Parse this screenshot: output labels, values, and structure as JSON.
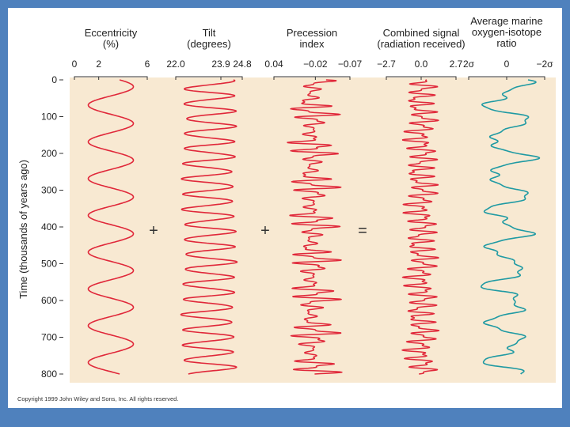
{
  "chart_data": {
    "type": "line",
    "ylabel": "Time (thousands of years ago)",
    "y_ticks": [
      "0",
      "100",
      "200",
      "300",
      "400",
      "500",
      "600",
      "700",
      "800"
    ],
    "ylim": [
      0,
      800
    ],
    "panels": [
      {
        "id": "eccentricity",
        "title_lines": [
          "Eccentricity",
          "(%)"
        ],
        "ticks": [
          "0",
          "2",
          "6"
        ],
        "tick_values": [
          0,
          2,
          6
        ],
        "xlim": [
          0,
          6
        ],
        "color": "#e0283a",
        "period_kyr": 100,
        "amplitude": 0.62,
        "min_value": 0,
        "max_value": 6
      },
      {
        "id": "tilt",
        "title_lines": [
          "Tilt",
          "(degrees)"
        ],
        "ticks": [
          "22.0",
          "23.9",
          "24.8"
        ],
        "tick_values": [
          22.0,
          23.9,
          24.8
        ],
        "xlim": [
          22.0,
          24.8
        ],
        "color": "#e0283a",
        "period_kyr": 41,
        "amplitude": 0.85,
        "min_value": 22.0,
        "max_value": 24.8
      },
      {
        "id": "precession",
        "title_lines": [
          "Precession",
          "index"
        ],
        "ticks": [
          "0.04",
          "−0.02",
          "−0.07"
        ],
        "tick_values": [
          0.04,
          -0.02,
          -0.07
        ],
        "xlim": [
          0.04,
          -0.07
        ],
        "color": "#e0283a",
        "period_kyr": 22,
        "amplitude": 0.9,
        "min_value": -0.07,
        "max_value": 0.04
      },
      {
        "id": "combined",
        "title_lines": [
          "Combined signal",
          "(radiation received)"
        ],
        "ticks": [
          "−2.7",
          "0.0",
          "2.7"
        ],
        "tick_values": [
          -2.7,
          0.0,
          2.7
        ],
        "xlim": [
          -2.7,
          2.7
        ],
        "color": "#e0283a",
        "period_kyr": 22,
        "amplitude": 0.55,
        "min_value": -2.7,
        "max_value": 2.7
      },
      {
        "id": "isotope",
        "title_lines": [
          "Average marine",
          "oxygen-isotope",
          "ratio"
        ],
        "ticks": [
          "2σ",
          "0",
          "−2σ"
        ],
        "tick_values": [
          2,
          0,
          -2
        ],
        "xlim": [
          2,
          -2
        ],
        "color": "#1f9aa3",
        "period_kyr": 100,
        "amplitude": 0.7,
        "min_value": -2,
        "max_value": 2
      }
    ],
    "operators": [
      "+",
      "+",
      "="
    ]
  },
  "copyright": "Copyright 1999 John Wiley and Sons, Inc. All rights reserved.",
  "colors": {
    "slide_background": "#4f81bd",
    "plot_background": "#f8e9d2",
    "series_red": "#e0283a",
    "series_teal": "#1f9aa3"
  }
}
